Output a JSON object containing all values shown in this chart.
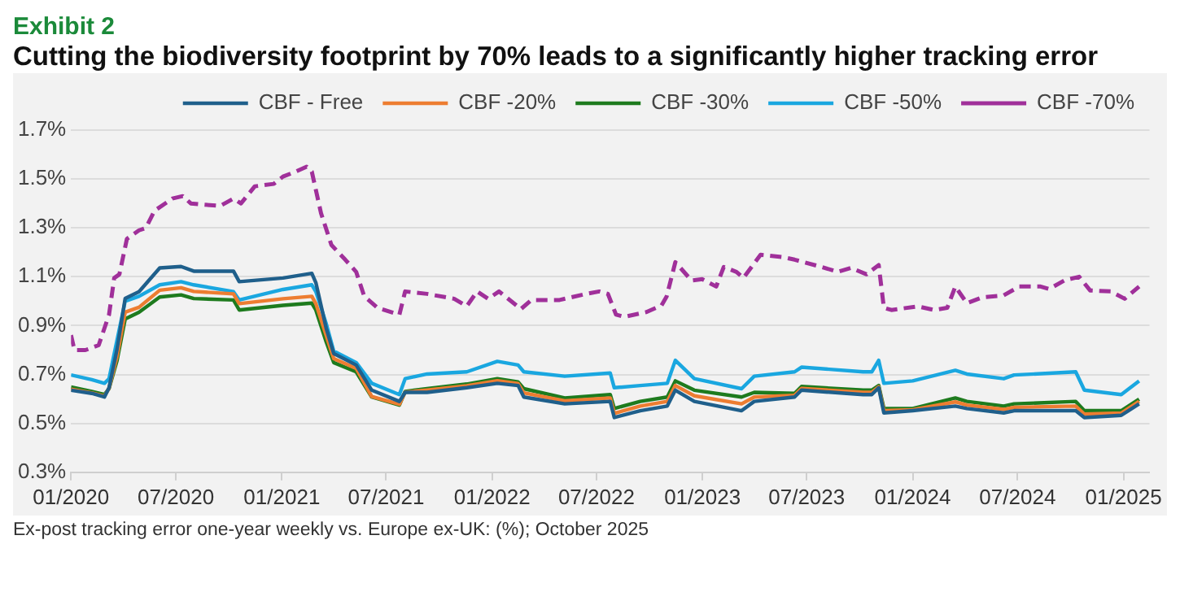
{
  "chart_data": {
    "type": "line",
    "title": "Exhibit 2",
    "subtitle": "Cutting the biodiversity footprint by 70% leads to a significantly higher tracking error",
    "x": [
      "2020-01-01",
      "2020-02-06",
      "2020-02-28",
      "2020-03-07",
      "2020-03-21",
      "2020-04-04",
      "2020-04-28",
      "2020-06-03",
      "2020-07-10",
      "2020-08-01",
      "2020-10-09",
      "2020-10-19",
      "2021-01-03",
      "2021-02-22",
      "2021-03-01",
      "2021-03-19",
      "2021-04-01",
      "2021-05-10",
      "2021-06-06",
      "2021-07-24",
      "2021-08-03",
      "2021-09-10",
      "2021-11-18",
      "2022-01-10",
      "2022-02-15",
      "2022-02-25",
      "2022-05-07",
      "2022-07-25",
      "2022-08-01",
      "2022-09-15",
      "2022-11-01",
      "2022-11-15",
      "2022-12-18",
      "2023-03-10",
      "2023-04-01",
      "2023-06-10",
      "2023-06-22",
      "2023-10-07",
      "2023-10-22",
      "2023-11-03",
      "2023-11-12",
      "2024-01-01",
      "2024-03-15",
      "2024-04-04",
      "2024-06-07",
      "2024-06-25",
      "2024-10-10",
      "2024-10-25",
      "2024-12-28",
      "2025-01-28"
    ],
    "series": [
      {
        "name": "CBF - Free",
        "color": "#1f5f8b",
        "values": [
          0.636,
          0.623,
          0.608,
          0.646,
          0.805,
          1.011,
          1.039,
          1.136,
          1.142,
          1.123,
          1.123,
          1.08,
          1.095,
          1.114,
          1.076,
          0.889,
          0.786,
          0.739,
          0.636,
          0.59,
          0.627,
          0.627,
          0.646,
          0.664,
          0.655,
          0.608,
          0.58,
          0.59,
          0.524,
          0.552,
          0.571,
          0.636,
          0.59,
          0.552,
          0.59,
          0.608,
          0.636,
          0.618,
          0.618,
          0.646,
          0.543,
          0.552,
          0.571,
          0.561,
          0.543,
          0.552,
          0.552,
          0.524,
          0.533,
          0.58
        ]
      },
      {
        "name": "CBF -20%",
        "color": "#ed7d31",
        "values": [
          0.64,
          0.625,
          0.612,
          0.644,
          0.775,
          0.955,
          0.975,
          1.045,
          1.055,
          1.04,
          1.03,
          0.99,
          1.01,
          1.02,
          0.99,
          0.86,
          0.765,
          0.725,
          0.61,
          0.578,
          0.628,
          0.636,
          0.654,
          0.675,
          0.663,
          0.625,
          0.592,
          0.604,
          0.541,
          0.571,
          0.59,
          0.655,
          0.613,
          0.58,
          0.608,
          0.615,
          0.643,
          0.627,
          0.627,
          0.65,
          0.552,
          0.556,
          0.588,
          0.575,
          0.557,
          0.566,
          0.571,
          0.538,
          0.542,
          0.59
        ]
      },
      {
        "name": "CBF -30%",
        "color": "#1e7b1e",
        "values": [
          0.649,
          0.631,
          0.618,
          0.642,
          0.758,
          0.927,
          0.955,
          1.017,
          1.026,
          1.011,
          1.005,
          0.964,
          0.983,
          0.992,
          0.964,
          0.833,
          0.749,
          0.711,
          0.608,
          0.575,
          0.631,
          0.642,
          0.661,
          0.683,
          0.67,
          0.642,
          0.604,
          0.618,
          0.561,
          0.59,
          0.608,
          0.674,
          0.636,
          0.608,
          0.627,
          0.623,
          0.651,
          0.636,
          0.636,
          0.655,
          0.561,
          0.561,
          0.604,
          0.59,
          0.571,
          0.58,
          0.59,
          0.552,
          0.552,
          0.599
        ]
      },
      {
        "name": "CBF -50%",
        "color": "#1aa7e0",
        "values": [
          0.698,
          0.679,
          0.664,
          0.683,
          0.842,
          1.0,
          1.02,
          1.067,
          1.08,
          1.067,
          1.039,
          1.005,
          1.048,
          1.067,
          1.039,
          0.908,
          0.796,
          0.749,
          0.664,
          0.618,
          0.683,
          0.702,
          0.711,
          0.754,
          0.739,
          0.711,
          0.693,
          0.706,
          0.646,
          0.655,
          0.664,
          0.758,
          0.683,
          0.642,
          0.693,
          0.711,
          0.73,
          0.711,
          0.711,
          0.758,
          0.664,
          0.674,
          0.717,
          0.702,
          0.683,
          0.698,
          0.711,
          0.636,
          0.618,
          0.674
        ]
      },
      {
        "name": "CBF -70%",
        "color": "#a0309a",
        "line_style": "dashed",
        "x": [
          "2020-01-01",
          "2020-01-07",
          "2020-01-26",
          "2020-02-18",
          "2020-03-07",
          "2020-03-16",
          "2020-03-25",
          "2020-04-07",
          "2020-04-28",
          "2020-05-10",
          "2020-05-25",
          "2020-06-25",
          "2020-07-13",
          "2020-07-27",
          "2020-08-18",
          "2020-09-16",
          "2020-10-09",
          "2020-10-22",
          "2020-11-15",
          "2020-12-18",
          "2021-01-03",
          "2021-01-25",
          "2021-02-13",
          "2021-02-22",
          "2021-03-10",
          "2021-03-28",
          "2021-04-21",
          "2021-05-10",
          "2021-05-24",
          "2021-06-16",
          "2021-07-24",
          "2021-08-03",
          "2021-09-10",
          "2021-10-27",
          "2021-11-18",
          "2021-12-06",
          "2021-12-25",
          "2022-01-13",
          "2022-02-20",
          "2022-03-10",
          "2022-04-28",
          "2022-06-13",
          "2022-07-06",
          "2022-07-21",
          "2022-08-04",
          "2022-08-18",
          "2022-09-25",
          "2022-10-22",
          "2022-10-31",
          "2022-11-15",
          "2022-12-13",
          "2023-01-01",
          "2023-01-25",
          "2023-02-07",
          "2023-03-01",
          "2023-03-13",
          "2023-04-12",
          "2023-05-22",
          "2023-06-10",
          "2023-07-27",
          "2023-08-24",
          "2023-09-16",
          "2023-10-13",
          "2023-11-03",
          "2023-11-12",
          "2023-11-25",
          "2024-01-10",
          "2024-02-07",
          "2024-03-01",
          "2024-03-15",
          "2024-04-04",
          "2024-05-01",
          "2024-06-07",
          "2024-07-04",
          "2024-08-10",
          "2024-08-25",
          "2024-09-21",
          "2024-10-16",
          "2024-11-04",
          "2024-12-10",
          "2025-01-03",
          "2025-01-28"
        ],
        "values": [
          0.861,
          0.8,
          0.8,
          0.82,
          0.945,
          1.095,
          1.11,
          1.255,
          1.29,
          1.3,
          1.37,
          1.42,
          1.43,
          1.4,
          1.395,
          1.39,
          1.42,
          1.4,
          1.47,
          1.48,
          1.51,
          1.53,
          1.55,
          1.53,
          1.36,
          1.23,
          1.17,
          1.12,
          1.02,
          0.973,
          0.945,
          1.04,
          1.03,
          1.01,
          0.98,
          1.04,
          1.01,
          1.04,
          0.968,
          1.005,
          1.005,
          1.03,
          1.04,
          1.03,
          0.945,
          0.936,
          0.955,
          0.983,
          1.02,
          1.16,
          1.085,
          1.09,
          1.06,
          1.14,
          1.12,
          1.095,
          1.19,
          1.18,
          1.17,
          1.14,
          1.12,
          1.136,
          1.11,
          1.148,
          0.973,
          0.964,
          0.979,
          0.964,
          0.973,
          1.06,
          0.992,
          1.016,
          1.024,
          1.06,
          1.06,
          1.05,
          1.086,
          1.1,
          1.044,
          1.04,
          1.01,
          1.06
        ]
      }
    ],
    "xlim": [
      "2020-01-01",
      "2025-02-15"
    ],
    "xticks": [
      {
        "value": "2020-01-01",
        "label": "01/2020"
      },
      {
        "value": "2020-07-01",
        "label": "07/2020"
      },
      {
        "value": "2021-01-01",
        "label": "01/2021"
      },
      {
        "value": "2021-07-01",
        "label": "07/2021"
      },
      {
        "value": "2022-01-01",
        "label": "01/2022"
      },
      {
        "value": "2022-07-01",
        "label": "07/2022"
      },
      {
        "value": "2023-01-01",
        "label": "01/2023"
      },
      {
        "value": "2023-07-01",
        "label": "07/2023"
      },
      {
        "value": "2024-01-01",
        "label": "01/2024"
      },
      {
        "value": "2024-07-01",
        "label": "07/2024"
      },
      {
        "value": "2025-01-01",
        "label": "01/2025"
      }
    ],
    "ylim": [
      0.3,
      1.7
    ],
    "yticks": [
      {
        "value": 0.3,
        "label": "0.3%"
      },
      {
        "value": 0.5,
        "label": "0.5%"
      },
      {
        "value": 0.7,
        "label": "0.7%"
      },
      {
        "value": 0.9,
        "label": "0.9%"
      },
      {
        "value": 1.1,
        "label": "1.1%"
      },
      {
        "value": 1.3,
        "label": "1.3%"
      },
      {
        "value": 1.5,
        "label": "1.5%"
      },
      {
        "value": 1.7,
        "label": "1.7%"
      }
    ],
    "grid": "y",
    "legend": "top",
    "marker": "none",
    "line_style": "solid",
    "annotations": [
      "Ex-post tracking error one-year weekly vs. Europe ex-UK: (%); October 2025"
    ]
  }
}
